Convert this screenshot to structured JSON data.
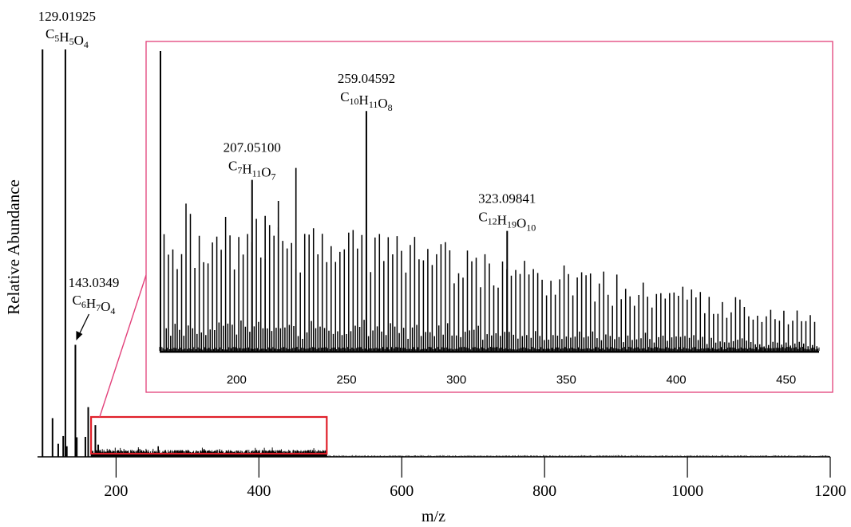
{
  "chart_data": [
    {
      "type": "line",
      "name": "main-spectrum",
      "title": "",
      "xlabel": "m/z",
      "ylabel": "Relative Abundance",
      "xlim": [
        90,
        1200
      ],
      "ylim": [
        0,
        100
      ],
      "x_ticks": [
        200,
        400,
        600,
        800,
        1000,
        1200
      ],
      "y_ticks": [],
      "grid": false,
      "major_peaks": [
        {
          "x": 97,
          "y": 100
        },
        {
          "x": 111,
          "y": 9.5
        },
        {
          "x": 119,
          "y": 3.2
        },
        {
          "x": 126,
          "y": 5.1
        },
        {
          "x": 129.01925,
          "y": 100
        },
        {
          "x": 131,
          "y": 2.6
        },
        {
          "x": 143.0349,
          "y": 27.5
        },
        {
          "x": 145,
          "y": 4.8
        },
        {
          "x": 157,
          "y": 4.9
        },
        {
          "x": 161,
          "y": 12.2
        },
        {
          "x": 171,
          "y": 7.8
        },
        {
          "x": 175,
          "y": 3.0
        }
      ],
      "labeled_peaks": [
        {
          "mz": "129.01925",
          "formula": [
            "C",
            "5",
            "H",
            "5",
            "O",
            "4"
          ]
        },
        {
          "mz": "143.0349",
          "formula": [
            "C",
            "6",
            "H",
            "7",
            "O",
            "4"
          ]
        }
      ],
      "zoom_box": {
        "x_range": [
          165,
          495
        ],
        "color": "#e0202a"
      }
    },
    {
      "type": "line",
      "name": "inset-spectrum",
      "title": "",
      "xlabel": "",
      "ylabel": "",
      "xlim": [
        165,
        465
      ],
      "ylim": [
        0,
        100
      ],
      "x_ticks": [
        200,
        250,
        300,
        350,
        400,
        450
      ],
      "frame_color": "#e2407a",
      "grid": false,
      "labeled_peaks": [
        {
          "mz": "207.05100",
          "formula": [
            "C",
            "7",
            "H",
            "11",
            "O",
            "7"
          ],
          "x": 207.051,
          "y": 57
        },
        {
          "mz": "259.04592",
          "formula": [
            "C",
            "10",
            "H",
            "11",
            "O",
            "8"
          ],
          "x": 259.046,
          "y": 80
        },
        {
          "mz": "323.09841",
          "formula": [
            "C",
            "12",
            "H",
            "19",
            "O",
            "10"
          ],
          "x": 323.098,
          "y": 40
        }
      ],
      "tallest_peak": {
        "x": 165,
        "y": 100
      }
    }
  ]
}
